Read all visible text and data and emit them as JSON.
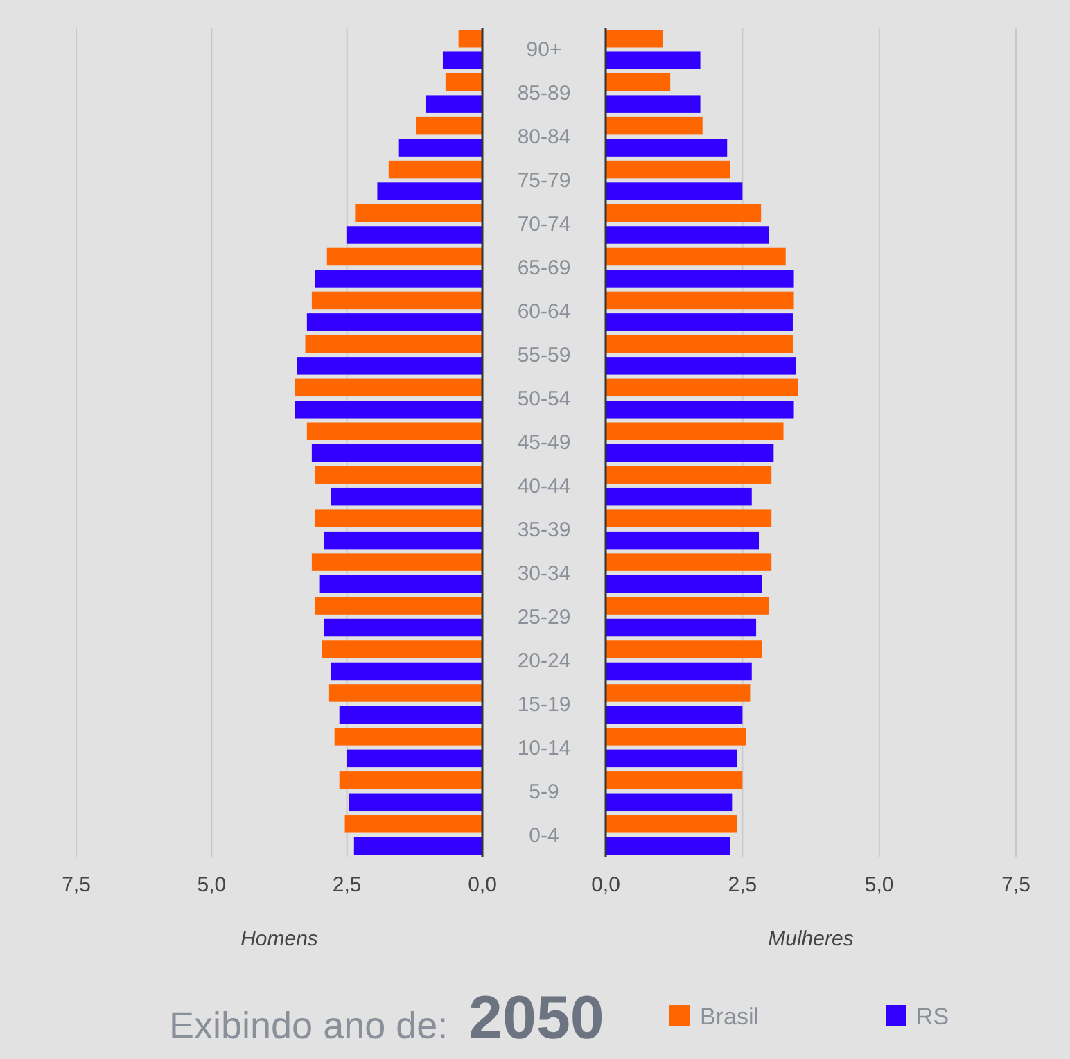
{
  "chart_data": [
    {
      "type": "bar",
      "orientation": "horizontal",
      "xlabel": "Homens",
      "categories": [
        "90+",
        "85-89",
        "80-84",
        "75-79",
        "70-74",
        "65-69",
        "60-64",
        "55-59",
        "50-54",
        "45-49",
        "40-44",
        "35-39",
        "30-34",
        "25-29",
        "20-24",
        "15-19",
        "10-14",
        "5-9",
        "0-4"
      ],
      "series": [
        {
          "color": "#ff6600",
          "values": [
            0.44,
            0.68,
            1.22,
            1.73,
            2.35,
            2.87,
            3.15,
            3.27,
            3.46,
            3.24,
            3.09,
            3.09,
            3.15,
            3.09,
            2.96,
            2.83,
            2.73,
            2.64,
            2.54
          ]
        },
        {
          "color": "#3300ff",
          "values": [
            0.73,
            1.05,
            1.54,
            1.94,
            2.51,
            3.09,
            3.24,
            3.42,
            3.46,
            3.15,
            2.79,
            2.92,
            3.0,
            2.92,
            2.79,
            2.64,
            2.5,
            2.46,
            2.37
          ]
        }
      ],
      "xlim": [
        7.5,
        0
      ],
      "xticks": [
        {
          "value": 7.5,
          "label": "7,5"
        },
        {
          "value": 5,
          "label": "5,0"
        },
        {
          "value": 2.5,
          "label": "2,5"
        },
        {
          "value": 0,
          "label": "0,0"
        }
      ],
      "grid": "x",
      "annotations": [
        "Exibindo ano de:",
        "2050"
      ]
    },
    {
      "type": "bar",
      "orientation": "horizontal",
      "xlabel": "Mulheres",
      "categories": [
        null,
        null,
        null,
        null,
        null,
        null,
        null,
        null,
        null,
        null,
        null,
        null,
        null,
        null,
        null,
        null,
        null,
        null,
        null
      ],
      "series": [
        {
          "name": "Brasil",
          "color": "#ff6600",
          "values": [
            1.05,
            1.18,
            1.77,
            2.27,
            2.84,
            3.29,
            3.44,
            3.42,
            3.52,
            3.25,
            3.03,
            3.03,
            3.03,
            2.98,
            2.86,
            2.64,
            2.57,
            2.5,
            2.4
          ]
        },
        {
          "name": "RS",
          "color": "#3300ff",
          "values": [
            1.73,
            1.73,
            2.22,
            2.5,
            2.98,
            3.44,
            3.42,
            3.48,
            3.44,
            3.07,
            2.67,
            2.8,
            2.86,
            2.75,
            2.67,
            2.5,
            2.4,
            2.31,
            2.27
          ]
        }
      ],
      "xlim": [
        0,
        7.5
      ],
      "xticks": [
        {
          "value": 0,
          "label": "0,0"
        },
        {
          "value": 2.5,
          "label": "2,5"
        },
        {
          "value": 5,
          "label": "5,0"
        },
        {
          "value": 7.5,
          "label": "7,5"
        }
      ],
      "grid": "x",
      "tick_labels": "x",
      "legend": "bottom"
    }
  ]
}
